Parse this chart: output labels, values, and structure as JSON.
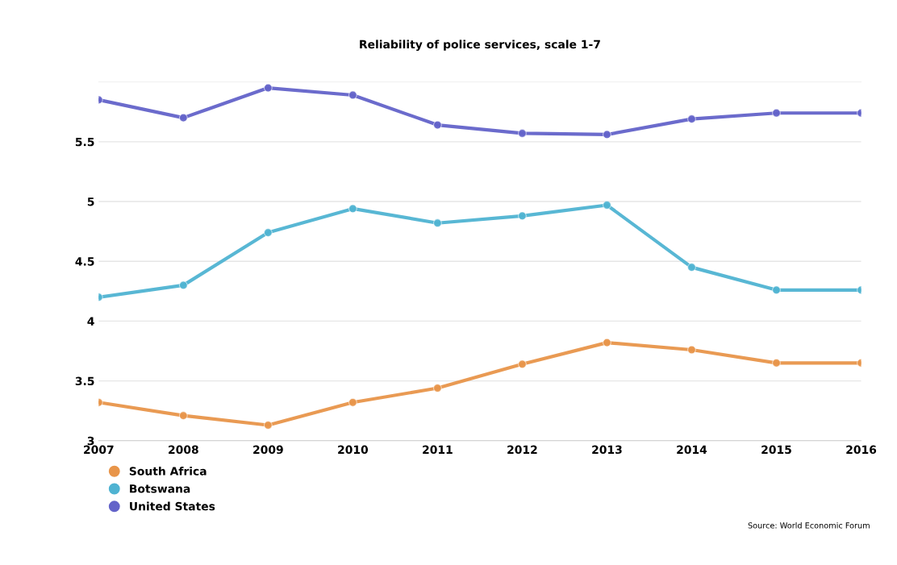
{
  "chart_data": {
    "type": "line",
    "title": "Reliability of police services, scale 1-7",
    "x": [
      2007,
      2008,
      2009,
      2010,
      2011,
      2012,
      2013,
      2014,
      2015,
      2016
    ],
    "series": [
      {
        "name": "South Africa",
        "color": "#e8954a",
        "values": [
          3.32,
          3.21,
          3.13,
          3.32,
          3.44,
          3.64,
          3.82,
          3.76,
          3.65,
          3.65
        ]
      },
      {
        "name": "Botswana",
        "color": "#4fb3d2",
        "values": [
          4.2,
          4.3,
          4.74,
          4.94,
          4.82,
          4.88,
          4.97,
          4.45,
          4.26,
          4.26
        ]
      },
      {
        "name": "United States",
        "color": "#6363c9",
        "values": [
          5.85,
          5.7,
          5.95,
          5.89,
          5.64,
          5.57,
          5.56,
          5.69,
          5.74,
          5.74
        ]
      }
    ],
    "xlim": [
      2007,
      2016
    ],
    "xticks": [
      2007,
      2008,
      2009,
      2010,
      2011,
      2012,
      2013,
      2014,
      2015,
      2016
    ],
    "ylim": [
      3,
      6
    ],
    "yticks": [
      3,
      3.5,
      4,
      4.5,
      5,
      5.5
    ],
    "grid": "y",
    "legend": "bottom left",
    "marker": "circle",
    "line_style": "solid",
    "annotations": [
      "Source: World Economic Forum"
    ]
  }
}
